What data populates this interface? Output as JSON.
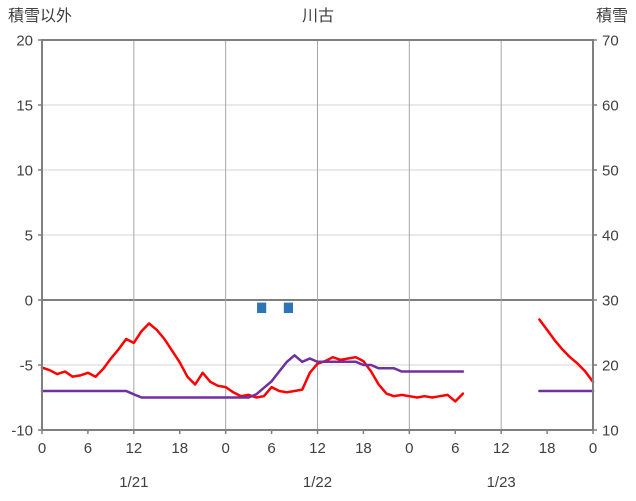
{
  "header": {
    "left_axis_title": "積雪以外",
    "title": "川古",
    "right_axis_title": "積雪"
  },
  "colors": {
    "text": "#404040",
    "axis": "#7F7F7F",
    "zero_line": "#7F7F7F",
    "grid_h": "#D6D6D6",
    "grid_v": "#A6A6A6",
    "background": "#FFFFFF"
  },
  "chart_data": {
    "type": "line",
    "title": "川古",
    "left_axis": {
      "label": "積雪以外",
      "min": -10,
      "max": 20,
      "ticks": [
        20,
        15,
        10,
        5,
        0,
        -5,
        -10
      ]
    },
    "right_axis": {
      "label": "積雪",
      "min": 10,
      "max": 70,
      "ticks": [
        70,
        60,
        50,
        40,
        30,
        20,
        10
      ]
    },
    "x_axis": {
      "hours_span": 72,
      "tick_interval": 6,
      "tick_labels": [
        "0",
        "6",
        "12",
        "18",
        "0",
        "6",
        "12",
        "18",
        "0",
        "6",
        "12",
        "18",
        "0"
      ],
      "gridline_hours": [
        12,
        24,
        36,
        48,
        60
      ],
      "date_labels": [
        {
          "label": "1/21",
          "center_hour": 12
        },
        {
          "label": "1/22",
          "center_hour": 36
        },
        {
          "label": "1/23",
          "center_hour": 60
        }
      ]
    },
    "series": [
      {
        "id": "red-series-line",
        "axis": "left",
        "color": "#FF0000",
        "segments": [
          [
            [
              0,
              -5.2
            ],
            [
              1,
              -5.4
            ],
            [
              2,
              -5.7
            ],
            [
              3,
              -5.5
            ],
            [
              4,
              -5.9
            ],
            [
              5,
              -5.8
            ],
            [
              6,
              -5.6
            ],
            [
              7,
              -5.9
            ],
            [
              8,
              -5.3
            ],
            [
              9,
              -4.5
            ],
            [
              10,
              -3.8
            ],
            [
              11,
              -3.0
            ],
            [
              12,
              -3.3
            ],
            [
              13,
              -2.4
            ],
            [
              14,
              -1.8
            ],
            [
              15,
              -2.3
            ],
            [
              16,
              -3.0
            ],
            [
              17,
              -3.9
            ],
            [
              18,
              -4.8
            ],
            [
              19,
              -5.9
            ],
            [
              20,
              -6.5
            ],
            [
              21,
              -5.6
            ],
            [
              22,
              -6.3
            ],
            [
              23,
              -6.6
            ],
            [
              24,
              -6.7
            ],
            [
              25,
              -7.1
            ],
            [
              26,
              -7.4
            ],
            [
              27,
              -7.3
            ],
            [
              28,
              -7.5
            ],
            [
              29,
              -7.4
            ],
            [
              30,
              -6.7
            ],
            [
              31,
              -7.0
            ],
            [
              32,
              -7.1
            ],
            [
              33,
              -7.0
            ],
            [
              34,
              -6.9
            ],
            [
              35,
              -5.6
            ],
            [
              36,
              -4.9
            ],
            [
              37,
              -4.7
            ],
            [
              38,
              -4.4
            ],
            [
              39,
              -4.6
            ],
            [
              40,
              -4.5
            ],
            [
              41,
              -4.4
            ],
            [
              42,
              -4.7
            ],
            [
              43,
              -5.5
            ],
            [
              44,
              -6.5
            ],
            [
              45,
              -7.2
            ],
            [
              46,
              -7.4
            ],
            [
              47,
              -7.3
            ],
            [
              48,
              -7.4
            ],
            [
              49,
              -7.5
            ],
            [
              50,
              -7.4
            ],
            [
              51,
              -7.5
            ],
            [
              52,
              -7.4
            ],
            [
              53,
              -7.3
            ],
            [
              54,
              -7.8
            ],
            [
              55,
              -7.2
            ]
          ],
          [
            [
              65,
              -1.5
            ],
            [
              66,
              -2.3
            ],
            [
              67,
              -3.1
            ],
            [
              68,
              -3.8
            ],
            [
              69,
              -4.4
            ],
            [
              70,
              -4.9
            ],
            [
              71,
              -5.5
            ],
            [
              72,
              -6.3
            ]
          ]
        ]
      },
      {
        "id": "purple-series-line",
        "axis": "right",
        "color": "#7030A0",
        "segments": [
          [
            [
              0,
              16
            ],
            [
              1,
              16
            ],
            [
              2,
              16
            ],
            [
              3,
              16
            ],
            [
              4,
              16
            ],
            [
              5,
              16
            ],
            [
              6,
              16
            ],
            [
              7,
              16
            ],
            [
              8,
              16
            ],
            [
              9,
              16
            ],
            [
              10,
              16
            ],
            [
              11,
              16
            ],
            [
              12,
              15.5
            ],
            [
              13,
              15
            ],
            [
              14,
              15
            ],
            [
              15,
              15
            ],
            [
              16,
              15
            ],
            [
              17,
              15
            ],
            [
              18,
              15
            ],
            [
              19,
              15
            ],
            [
              20,
              15
            ],
            [
              21,
              15
            ],
            [
              22,
              15
            ],
            [
              23,
              15
            ],
            [
              24,
              15
            ],
            [
              25,
              15
            ],
            [
              26,
              15
            ],
            [
              27,
              15
            ],
            [
              28,
              15.5
            ],
            [
              29,
              16.5
            ],
            [
              30,
              17.5
            ],
            [
              31,
              19
            ],
            [
              32,
              20.5
            ],
            [
              33,
              21.5
            ],
            [
              34,
              20.5
            ],
            [
              35,
              21
            ],
            [
              36,
              20.5
            ],
            [
              37,
              20.5
            ],
            [
              38,
              20.5
            ],
            [
              39,
              20.5
            ],
            [
              40,
              20.5
            ],
            [
              41,
              20.5
            ],
            [
              42,
              20
            ],
            [
              43,
              20
            ],
            [
              44,
              19.5
            ],
            [
              45,
              19.5
            ],
            [
              46,
              19.5
            ],
            [
              47,
              19
            ],
            [
              48,
              19
            ],
            [
              49,
              19
            ],
            [
              50,
              19
            ],
            [
              51,
              19
            ],
            [
              52,
              19
            ],
            [
              53,
              19
            ],
            [
              54,
              19
            ],
            [
              55,
              19
            ]
          ],
          [
            [
              65,
              16
            ],
            [
              66,
              16
            ],
            [
              67,
              16
            ],
            [
              68,
              16
            ],
            [
              69,
              16
            ],
            [
              70,
              16
            ],
            [
              71,
              16
            ],
            [
              72,
              16
            ]
          ]
        ]
      }
    ],
    "markers": [
      {
        "id": "blue-square-marker",
        "hour": 28.7,
        "axis": "left",
        "value_top": -0.2,
        "value_bottom": -1.0,
        "hour_width": 1.2,
        "color": "#2E75B6"
      },
      {
        "id": "blue-square-marker",
        "hour": 32.2,
        "axis": "left",
        "value_top": -0.2,
        "value_bottom": -1.0,
        "hour_width": 1.2,
        "color": "#2E75B6"
      }
    ]
  }
}
